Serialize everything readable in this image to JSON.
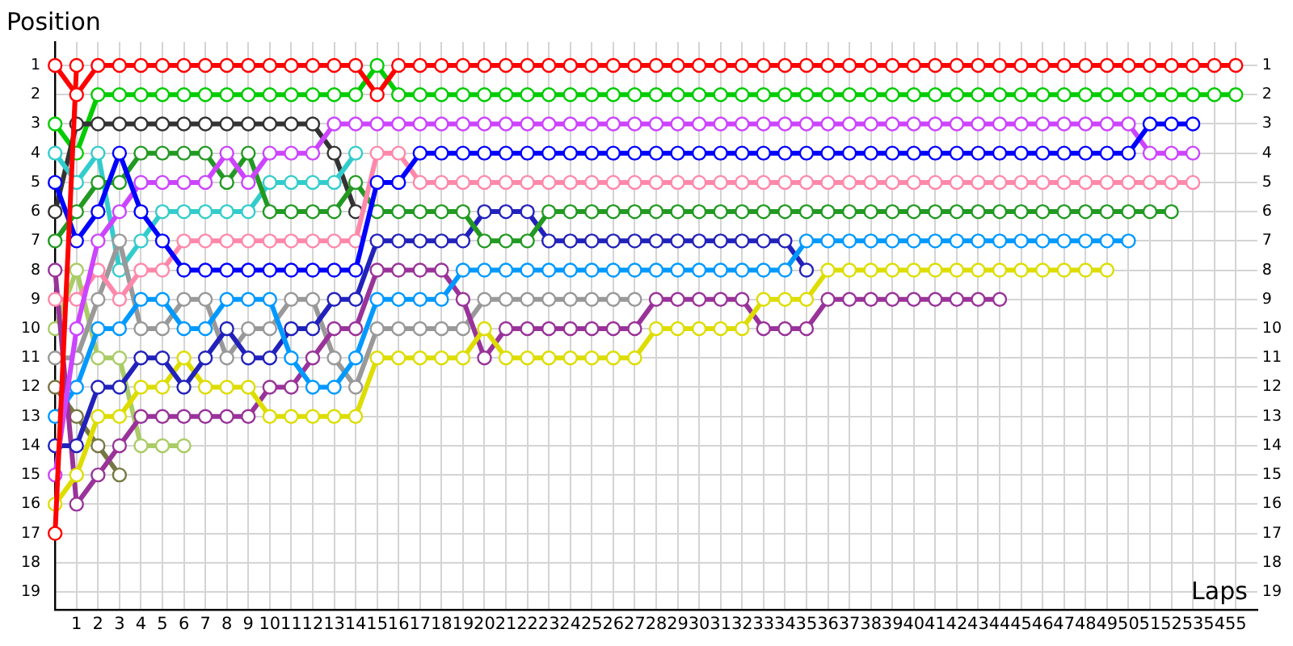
{
  "chart_data": {
    "type": "line",
    "xlabel": "Laps",
    "ylabel": "Position",
    "x": [
      0,
      1,
      2,
      3,
      4,
      5,
      6,
      7,
      8,
      9,
      10,
      11,
      12,
      13,
      14,
      15,
      16,
      17,
      18,
      19,
      20,
      21,
      22,
      23,
      24,
      25,
      26,
      27,
      28,
      29,
      30,
      31,
      32,
      33,
      34,
      35,
      36,
      37,
      38,
      39,
      40,
      41,
      42,
      43,
      44,
      45,
      46,
      47,
      48,
      49,
      50,
      51,
      52,
      53,
      54,
      55
    ],
    "xlim": [
      0,
      56
    ],
    "xticks": [
      1,
      2,
      3,
      4,
      5,
      6,
      7,
      8,
      9,
      10,
      11,
      12,
      13,
      14,
      15,
      16,
      17,
      18,
      19,
      20,
      21,
      22,
      23,
      24,
      25,
      26,
      27,
      28,
      29,
      30,
      31,
      32,
      33,
      34,
      35,
      36,
      37,
      38,
      39,
      40,
      41,
      42,
      43,
      44,
      45,
      46,
      47,
      48,
      49,
      50,
      51,
      52,
      53,
      54,
      55
    ],
    "ylim": [
      19.6,
      0.2
    ],
    "yticks": [
      1,
      2,
      3,
      4,
      5,
      6,
      7,
      8,
      9,
      10,
      11,
      12,
      13,
      14,
      15,
      16,
      17,
      18,
      19
    ],
    "y2lim": [
      19.6,
      0.2
    ],
    "y2ticks": [
      1,
      2,
      3,
      4,
      5,
      6,
      7,
      8,
      9,
      10,
      11,
      12,
      13,
      14,
      15,
      16,
      17,
      18,
      19
    ],
    "grid": true,
    "legend": false,
    "marker": "circle",
    "line_style": "solid",
    "series": [
      {
        "color": "#00cc00",
        "values": [
          3,
          4,
          2,
          2,
          2,
          2,
          2,
          2,
          2,
          2,
          2,
          2,
          2,
          2,
          2,
          1,
          2,
          2,
          2,
          2,
          2,
          2,
          2,
          2,
          2,
          2,
          2,
          2,
          2,
          2,
          2,
          2,
          2,
          2,
          2,
          2,
          2,
          2,
          2,
          2,
          2,
          2,
          2,
          2,
          2,
          2,
          2,
          2,
          2,
          2,
          2,
          2,
          2,
          2,
          2,
          2
        ]
      },
      {
        "color": "#333333",
        "values": [
          6,
          3,
          3,
          3,
          3,
          3,
          3,
          3,
          3,
          3,
          3,
          3,
          3,
          4,
          6,
          null,
          null,
          null,
          null,
          null,
          null,
          null,
          null,
          null,
          null,
          null,
          null,
          null,
          null,
          null,
          null,
          null,
          null,
          null,
          null,
          null,
          null,
          null,
          null,
          null,
          null,
          null,
          null,
          null,
          null,
          null,
          null,
          null,
          null,
          null,
          null,
          null,
          null,
          null,
          null,
          null
        ]
      },
      {
        "color": "#33cccc",
        "values": [
          4,
          5,
          4,
          8,
          7,
          6,
          6,
          6,
          6,
          6,
          5,
          5,
          5,
          5,
          4,
          null,
          null,
          null,
          null,
          null,
          null,
          null,
          null,
          null,
          null,
          null,
          null,
          null,
          null,
          null,
          null,
          null,
          null,
          null,
          null,
          null,
          null,
          null,
          null,
          null,
          null,
          null,
          null,
          null,
          null,
          null,
          null,
          null,
          null,
          null,
          null,
          null,
          null,
          null,
          null,
          null
        ]
      },
      {
        "color": "#aacc66",
        "values": [
          10,
          8,
          11,
          11,
          14,
          14,
          14,
          null,
          null,
          null,
          null,
          null,
          null,
          null,
          null,
          null,
          null,
          null,
          null,
          null,
          null,
          null,
          null,
          null,
          null,
          null,
          null,
          null,
          null,
          null,
          null,
          null,
          null,
          null,
          null,
          null,
          null,
          null,
          null,
          null,
          null,
          null,
          null,
          null,
          null,
          null,
          null,
          null,
          null,
          null,
          null,
          null,
          null,
          null,
          null,
          null
        ]
      },
      {
        "color": "#777744",
        "values": [
          12,
          13,
          14,
          15,
          null,
          null,
          null,
          null,
          null,
          null,
          null,
          null,
          null,
          null,
          null,
          null,
          null,
          null,
          null,
          null,
          null,
          null,
          null,
          null,
          null,
          null,
          null,
          null,
          null,
          null,
          null,
          null,
          null,
          null,
          null,
          null,
          null,
          null,
          null,
          null,
          null,
          null,
          null,
          null,
          null,
          null,
          null,
          null,
          null,
          null,
          null,
          null,
          null,
          null,
          null,
          null
        ]
      },
      {
        "color": "#999999",
        "values": [
          11,
          11,
          9,
          7,
          10,
          10,
          9,
          9,
          11,
          10,
          10,
          9,
          9,
          11,
          12,
          10,
          10,
          10,
          10,
          10,
          9,
          9,
          9,
          9,
          9,
          9,
          9,
          9,
          null,
          null,
          null,
          null,
          null,
          null,
          null,
          null,
          null,
          null,
          null,
          null,
          null,
          null,
          null,
          null,
          null,
          null,
          null,
          null,
          null,
          null,
          null,
          null,
          null,
          null,
          null,
          null
        ]
      },
      {
        "color": "#993399",
        "values": [
          8,
          16,
          15,
          14,
          13,
          13,
          13,
          13,
          13,
          13,
          12,
          12,
          11,
          10,
          10,
          8,
          8,
          8,
          8,
          9,
          11,
          10,
          10,
          10,
          10,
          10,
          10,
          10,
          9,
          9,
          9,
          9,
          9,
          10,
          10,
          10,
          9,
          9,
          9,
          9,
          9,
          9,
          9,
          9,
          9,
          null,
          null,
          null,
          null,
          null,
          null,
          null,
          null,
          null,
          null,
          null
        ]
      },
      {
        "color": "#dddd00",
        "values": [
          16,
          15,
          13,
          13,
          12,
          12,
          11,
          12,
          12,
          12,
          13,
          13,
          13,
          13,
          13,
          11,
          11,
          11,
          11,
          11,
          10,
          11,
          11,
          11,
          11,
          11,
          11,
          11,
          10,
          10,
          10,
          10,
          10,
          9,
          9,
          9,
          8,
          8,
          8,
          8,
          8,
          8,
          8,
          8,
          8,
          8,
          8,
          8,
          8,
          8,
          null,
          null,
          null,
          null,
          null,
          null
        ]
      },
      {
        "color": "#2222bb",
        "values": [
          14,
          14,
          12,
          12,
          11,
          11,
          12,
          11,
          10,
          11,
          11,
          10,
          10,
          9,
          9,
          7,
          7,
          7,
          7,
          7,
          6,
          6,
          6,
          7,
          7,
          7,
          7,
          7,
          7,
          7,
          7,
          7,
          7,
          7,
          7,
          8,
          null,
          null,
          null,
          null,
          null,
          null,
          null,
          null,
          null,
          null,
          null,
          null,
          null,
          null,
          null,
          null,
          null,
          null,
          null,
          null
        ]
      },
      {
        "color": "#0099ff",
        "values": [
          13,
          12,
          10,
          10,
          9,
          9,
          10,
          10,
          9,
          9,
          9,
          11,
          12,
          12,
          11,
          9,
          9,
          9,
          9,
          8,
          8,
          8,
          8,
          8,
          8,
          8,
          8,
          8,
          8,
          8,
          8,
          8,
          8,
          8,
          8,
          7,
          7,
          7,
          7,
          7,
          7,
          7,
          7,
          7,
          7,
          7,
          7,
          7,
          7,
          7,
          7,
          null,
          null,
          null,
          null,
          null
        ]
      },
      {
        "color": "#229922",
        "values": [
          7,
          6,
          5,
          5,
          4,
          4,
          4,
          4,
          5,
          4,
          6,
          6,
          6,
          6,
          5,
          6,
          6,
          6,
          6,
          6,
          7,
          7,
          7,
          6,
          6,
          6,
          6,
          6,
          6,
          6,
          6,
          6,
          6,
          6,
          6,
          6,
          6,
          6,
          6,
          6,
          6,
          6,
          6,
          6,
          6,
          6,
          6,
          6,
          6,
          6,
          6,
          6,
          6,
          null,
          null,
          null
        ]
      },
      {
        "color": "#ff88aa",
        "values": [
          9,
          9,
          8,
          9,
          8,
          8,
          7,
          7,
          7,
          7,
          7,
          7,
          7,
          7,
          7,
          4,
          4,
          5,
          5,
          5,
          5,
          5,
          5,
          5,
          5,
          5,
          5,
          5,
          5,
          5,
          5,
          5,
          5,
          5,
          5,
          5,
          5,
          5,
          5,
          5,
          5,
          5,
          5,
          5,
          5,
          5,
          5,
          5,
          5,
          5,
          5,
          5,
          5,
          5,
          null,
          null
        ]
      },
      {
        "color": "#cc44ff",
        "values": [
          15,
          10,
          7,
          6,
          5,
          5,
          5,
          5,
          4,
          5,
          4,
          4,
          4,
          3,
          3,
          3,
          3,
          3,
          3,
          3,
          3,
          3,
          3,
          3,
          3,
          3,
          3,
          3,
          3,
          3,
          3,
          3,
          3,
          3,
          3,
          3,
          3,
          3,
          3,
          3,
          3,
          3,
          3,
          3,
          3,
          3,
          3,
          3,
          3,
          3,
          3,
          4,
          4,
          4,
          null,
          null
        ]
      },
      {
        "color": "#0000ff",
        "values": [
          5,
          7,
          6,
          4,
          6,
          7,
          8,
          8,
          8,
          8,
          8,
          8,
          8,
          8,
          8,
          5,
          5,
          4,
          4,
          4,
          4,
          4,
          4,
          4,
          4,
          4,
          4,
          4,
          4,
          4,
          4,
          4,
          4,
          4,
          4,
          4,
          4,
          4,
          4,
          4,
          4,
          4,
          4,
          4,
          4,
          4,
          4,
          4,
          4,
          4,
          4,
          3,
          3,
          3,
          null,
          null
        ]
      },
      {
        "color": "#ff0000",
        "values": [
          17,
          1,
          null,
          null,
          null,
          null,
          null,
          null,
          null,
          null,
          null,
          null,
          null,
          null,
          null,
          null,
          null,
          null,
          null,
          null,
          null,
          null,
          null,
          null,
          null,
          null,
          null,
          null,
          null,
          null,
          null,
          null,
          null,
          null,
          null,
          null,
          null,
          null,
          null,
          null,
          null,
          null,
          null,
          null,
          null,
          null,
          null,
          null,
          null,
          null,
          null,
          null,
          null,
          null,
          null,
          null
        ]
      },
      {
        "color": "#ff0000",
        "values": [
          1,
          2,
          1,
          1,
          1,
          1,
          1,
          1,
          1,
          1,
          1,
          1,
          1,
          1,
          1,
          2,
          1,
          1,
          1,
          1,
          1,
          1,
          1,
          1,
          1,
          1,
          1,
          1,
          1,
          1,
          1,
          1,
          1,
          1,
          1,
          1,
          1,
          1,
          1,
          1,
          1,
          1,
          1,
          1,
          1,
          1,
          1,
          1,
          1,
          1,
          1,
          1,
          1,
          1,
          1,
          1
        ]
      }
    ]
  }
}
